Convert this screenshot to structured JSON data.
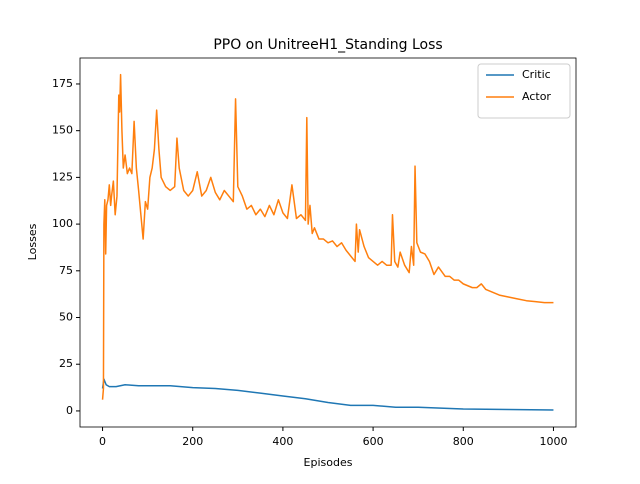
{
  "chart_data": {
    "type": "line",
    "title": "PPO on UnitreeH1_Standing Loss",
    "x_label": "Episodes",
    "y_label": "Losses",
    "xlim": [
      -50,
      1050
    ],
    "ylim": [
      -8.6,
      188.9
    ],
    "xticks": [
      0,
      200,
      400,
      600,
      800,
      1000
    ],
    "yticks": [
      0,
      25,
      50,
      75,
      100,
      125,
      150,
      175
    ],
    "legend": "upper right",
    "series": [
      {
        "name": "Critic",
        "color": "#1f77b4",
        "x": [
          0,
          3,
          8,
          15,
          30,
          50,
          80,
          150,
          200,
          250,
          300,
          350,
          400,
          450,
          500,
          550,
          600,
          650,
          700,
          750,
          800,
          900,
          1000
        ],
        "values": [
          12,
          17,
          14,
          13,
          13,
          14,
          13.5,
          13.5,
          12.5,
          12,
          11,
          9.5,
          8,
          6.5,
          4.5,
          3,
          3,
          2,
          2,
          1.5,
          1,
          0.8,
          0.5
        ]
      },
      {
        "name": "Actor",
        "color": "#ff7f0e",
        "x": [
          0,
          2,
          3,
          5,
          7,
          9,
          12,
          15,
          18,
          20,
          24,
          28,
          32,
          36,
          38,
          40,
          43,
          46,
          50,
          55,
          60,
          65,
          70,
          75,
          80,
          85,
          90,
          95,
          100,
          105,
          110,
          115,
          120,
          125,
          130,
          140,
          150,
          160,
          165,
          170,
          180,
          190,
          200,
          210,
          220,
          230,
          240,
          250,
          260,
          270,
          280,
          290,
          295,
          300,
          310,
          320,
          330,
          340,
          350,
          360,
          370,
          380,
          390,
          400,
          410,
          420,
          430,
          440,
          450,
          453,
          456,
          460,
          465,
          470,
          480,
          490,
          500,
          510,
          520,
          530,
          540,
          550,
          560,
          563,
          567,
          570,
          580,
          590,
          600,
          610,
          620,
          630,
          640,
          643,
          648,
          655,
          660,
          670,
          680,
          685,
          690,
          693,
          697,
          705,
          715,
          725,
          735,
          745,
          760,
          770,
          780,
          790,
          800,
          810,
          820,
          830,
          840,
          850,
          860,
          880,
          900,
          920,
          940,
          960,
          980,
          1000
        ],
        "values": [
          6,
          12,
          100,
          113,
          84,
          110,
          113,
          121,
          110,
          115,
          123,
          105,
          115,
          169,
          160,
          180,
          150,
          130,
          137,
          127,
          130,
          127,
          155,
          130,
          118,
          105,
          92,
          112,
          108,
          125,
          130,
          140,
          161,
          140,
          125,
          120,
          118,
          120,
          146,
          130,
          118,
          115,
          118,
          128,
          115,
          118,
          125,
          117,
          113,
          118,
          115,
          112,
          167,
          120,
          115,
          108,
          110,
          105,
          108,
          104,
          110,
          105,
          113,
          106,
          103,
          121,
          103,
          105,
          102,
          157,
          100,
          110,
          95,
          98,
          92,
          92,
          90,
          91,
          88,
          90,
          86,
          83,
          80,
          100,
          85,
          97,
          88,
          82,
          80,
          78,
          80,
          78,
          78,
          105,
          80,
          77,
          85,
          78,
          74,
          88,
          78,
          131,
          90,
          85,
          84,
          80,
          73,
          77,
          72,
          72,
          70,
          70,
          68,
          67,
          66,
          66,
          68,
          65,
          64,
          62,
          61,
          60,
          59,
          58.5,
          58,
          58
        ]
      }
    ]
  }
}
